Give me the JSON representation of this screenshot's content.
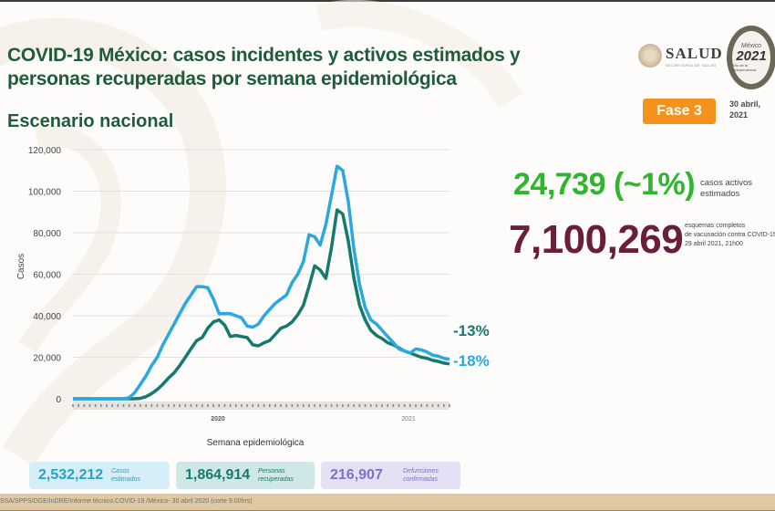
{
  "header": {
    "title": "COVID-19 México: casos incidentes y activos estimados y personas recuperadas por semana epidemiológica",
    "subtitle": "Escenario nacional",
    "logo_salud": "SALUD",
    "logo_salud_sub": "SECRETARÍA DE SALUD",
    "emblem_top": "México",
    "emblem_year": "2021",
    "emblem_sub": "Año de la Independencia",
    "phase_badge": "Fase 3",
    "date_line1": "30 abril,",
    "date_line2": "2021"
  },
  "stats": {
    "active_value": "24,739 (~1%)",
    "active_label_line1": "casos activos",
    "active_label_line2": "estimados",
    "vaccination_value": "7,100,269",
    "vaccination_label_line1": "esquemas completos",
    "vaccination_label_line2": "de vacunación contra COVID-19",
    "vaccination_label_line3": "29 abril 2021, 21h00"
  },
  "summary_boxes": [
    {
      "value": "2,532,212",
      "label_line1": "Casos",
      "label_line2": "estimados"
    },
    {
      "value": "1,864,914",
      "label_line1": "Personas",
      "label_line2": "recuperadas"
    },
    {
      "value": "216,907",
      "label_line1": "Defunciones",
      "label_line2": "confirmadas"
    }
  ],
  "footer": {
    "source": "SSA/SPPS/DGE/InDRE/Informe técnico.COVID-19 /México- 30 abril 2020 (corte 9:00hrs)"
  },
  "colors": {
    "title_green": "#1f5c3a",
    "incident_blue": "#29a9df",
    "active_teal": "#157a6e",
    "active_stat_green": "#2fb52f",
    "vaccination_maroon": "#6b1e3a",
    "phase_orange": "#f5921e"
  },
  "chart_data": {
    "type": "line",
    "title": "Escenario nacional",
    "xlabel": "Semana epidemiológica",
    "ylabel": "Casos",
    "ylim": [
      0,
      120000
    ],
    "yticks": [
      "0",
      "20,000",
      "40,000",
      "60,000",
      "80,000",
      "100,000",
      "120,000"
    ],
    "x_group_labels": [
      "2020",
      "2021"
    ],
    "grid": true,
    "x": [
      "2020-W01",
      "2020-W02",
      "2020-W03",
      "2020-W04",
      "2020-W05",
      "2020-W06",
      "2020-W07",
      "2020-W08",
      "2020-W09",
      "2020-W10",
      "2020-W11",
      "2020-W12",
      "2020-W13",
      "2020-W14",
      "2020-W15",
      "2020-W16",
      "2020-W17",
      "2020-W18",
      "2020-W19",
      "2020-W20",
      "2020-W21",
      "2020-W22",
      "2020-W23",
      "2020-W24",
      "2020-W25",
      "2020-W26",
      "2020-W27",
      "2020-W28",
      "2020-W29",
      "2020-W30",
      "2020-W31",
      "2020-W32",
      "2020-W33",
      "2020-W34",
      "2020-W35",
      "2020-W36",
      "2020-W37",
      "2020-W38",
      "2020-W39",
      "2020-W40",
      "2020-W41",
      "2020-W42",
      "2020-W43",
      "2020-W44",
      "2020-W45",
      "2020-W46",
      "2020-W47",
      "2020-W48",
      "2020-W49",
      "2020-W50",
      "2020-W51",
      "2020-W52",
      "2020-W53",
      "2021-W01",
      "2021-W02",
      "2021-W03",
      "2021-W04",
      "2021-W05",
      "2021-W06",
      "2021-W07",
      "2021-W08",
      "2021-W09",
      "2021-W10",
      "2021-W11",
      "2021-W12",
      "2021-W13",
      "2021-W14",
      "2021-W15"
    ],
    "series": [
      {
        "name": "Casos incidentes estimados",
        "color": "#29a9df",
        "end_annotation": "-18%",
        "values": [
          0,
          0,
          0,
          0,
          0,
          0,
          0,
          0,
          0,
          0,
          500,
          3000,
          7000,
          11000,
          16000,
          20000,
          26000,
          31000,
          36000,
          41000,
          46000,
          50000,
          54000,
          54000,
          53500,
          48000,
          41000,
          41000,
          41000,
          40000,
          39000,
          35000,
          34500,
          36000,
          40000,
          43000,
          46000,
          48000,
          50000,
          56000,
          60000,
          66000,
          79000,
          78000,
          74000,
          84000,
          98000,
          112000,
          110000,
          95000,
          72000,
          55000,
          44000,
          38000,
          36000,
          33000,
          30000,
          27000,
          24000,
          23000,
          22000,
          24000,
          23500,
          22500,
          21000,
          20500,
          19500,
          19000
        ]
      },
      {
        "name": "Casos activos estimados",
        "color": "#157a6e",
        "end_annotation": "-13%",
        "values": [
          0,
          0,
          0,
          0,
          0,
          0,
          0,
          0,
          0,
          0,
          0,
          0,
          200,
          1000,
          2500,
          4500,
          7000,
          10000,
          12500,
          16000,
          20000,
          24000,
          28000,
          29500,
          34000,
          37000,
          38000,
          35500,
          30000,
          30500,
          30000,
          29500,
          26000,
          25500,
          27000,
          28000,
          31000,
          34000,
          35000,
          37000,
          40500,
          45000,
          54000,
          64000,
          62000,
          58000,
          73000,
          91000,
          89000,
          76000,
          58000,
          45000,
          38000,
          33000,
          30500,
          29000,
          27000,
          26000,
          24500,
          23000,
          22000,
          21000,
          20000,
          19500,
          18500,
          18000,
          17200,
          16800
        ]
      }
    ]
  }
}
